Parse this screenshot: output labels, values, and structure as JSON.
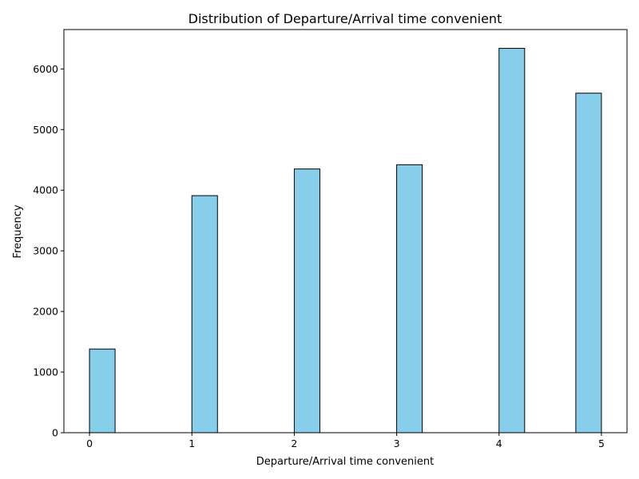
{
  "chart_data": {
    "type": "bar",
    "title": "Distribution of Departure/Arrival time convenient",
    "xlabel": "Departure/Arrival time convenient",
    "ylabel": "Frequency",
    "categories": [
      "0",
      "1",
      "2",
      "3",
      "4",
      "5"
    ],
    "bins": [
      {
        "x0": 0.0,
        "x1": 0.25,
        "value": 1380
      },
      {
        "x0": 1.0,
        "x1": 1.25,
        "value": 3910
      },
      {
        "x0": 2.0,
        "x1": 2.25,
        "value": 4350
      },
      {
        "x0": 3.0,
        "x1": 3.25,
        "value": 4420
      },
      {
        "x0": 4.0,
        "x1": 4.25,
        "value": 6340
      },
      {
        "x0": 4.75,
        "x1": 5.0,
        "value": 5600
      }
    ],
    "xlim": [
      -0.25,
      5.25
    ],
    "ylim": [
      0,
      6650
    ],
    "xticks": [
      0,
      1,
      2,
      3,
      4,
      5
    ],
    "yticks": [
      0,
      1000,
      2000,
      3000,
      4000,
      5000,
      6000
    ],
    "bar_color": "#87CEEB",
    "edge_color": "#000000",
    "grid": false,
    "legend": false
  }
}
